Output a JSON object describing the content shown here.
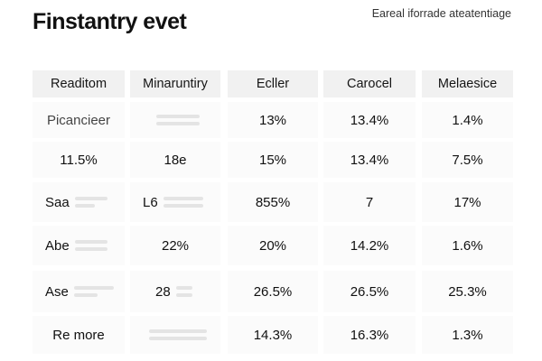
{
  "title": "Finstantry evet",
  "subtitle": "Eareal iforrade ateatentiage",
  "columns": [
    "Readitom",
    "Minaruntiry",
    "Ecller",
    "Carocel",
    "Melaesice"
  ],
  "rows": [
    {
      "c0": "Picancieer",
      "c1": "",
      "c2": "13%",
      "c3": "13.4%",
      "c4": "1.4%"
    },
    {
      "c0": "11.5%",
      "c1": "18e",
      "c2": "15%",
      "c3": "13.4%",
      "c4": "7.5%"
    },
    {
      "c0": "Saa",
      "c1": "L6",
      "c2": "855%",
      "c3": "7",
      "c4": "17%"
    },
    {
      "c0": "Abe",
      "c1": "22%",
      "c2": "20%",
      "c3": "14.2%",
      "c4": "1.6%"
    },
    {
      "c0": "Ase",
      "c1": "28",
      "c2": "26.5%",
      "c3": "26.5%",
      "c4": "25.3%"
    },
    {
      "c0": "Re more",
      "c1": "",
      "c2": "14.3%",
      "c3": "16.3%",
      "c4": "1.3%"
    }
  ]
}
